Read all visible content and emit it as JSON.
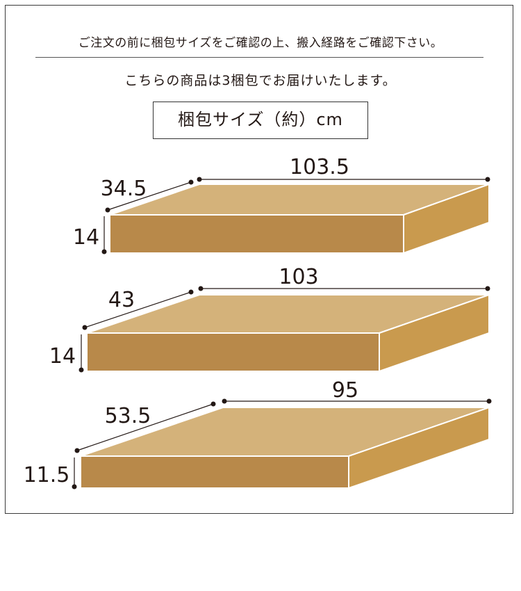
{
  "header": {
    "notice": "ご注文の前に梱包サイズをご確認の上、搬入経路をご確認下さい。",
    "packages_note": "こちらの商品は3梱包でお届けいたします。",
    "size_title": "梱包サイズ（約）cm"
  },
  "colors": {
    "top": "#d4b27a",
    "front": "#b8894a",
    "side": "#c99a4e",
    "line": "#231815"
  },
  "packages": [
    {
      "width": "103.5",
      "depth": "34.5",
      "height": "14"
    },
    {
      "width": "103",
      "depth": "43",
      "height": "14"
    },
    {
      "width": "95",
      "depth": "53.5",
      "height": "11.5"
    }
  ]
}
